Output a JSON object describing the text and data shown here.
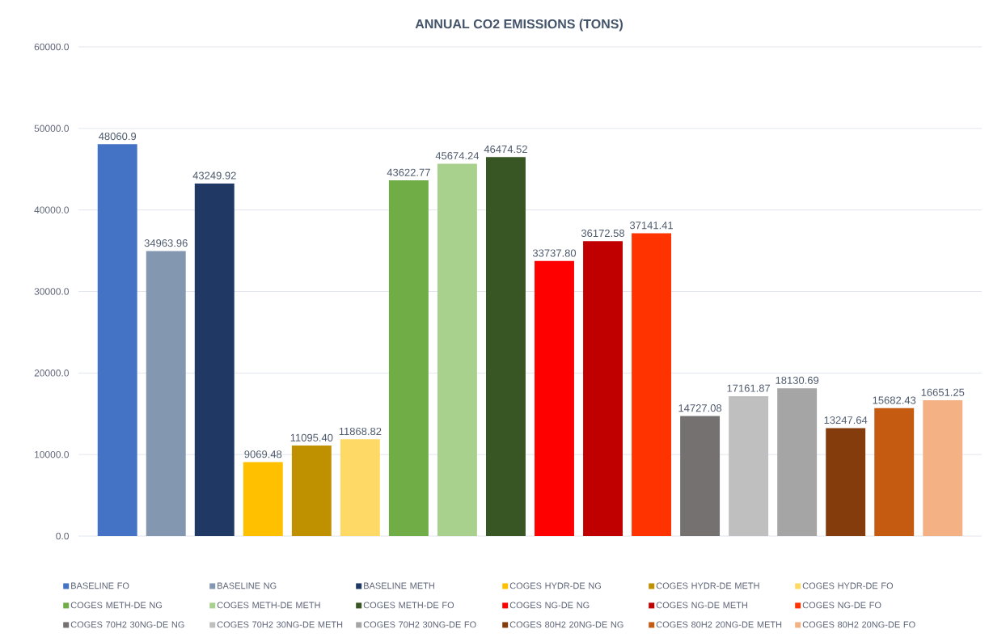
{
  "chart_data": {
    "type": "bar",
    "title": "ANNUAL CO2 EMISSIONS (TONS)",
    "categories": [
      null
    ],
    "series": [
      {
        "name": "BASELINE FO",
        "color": "#4472c4",
        "values": [
          48060.9
        ],
        "value_labels": [
          "48060.9"
        ]
      },
      {
        "name": "BASELINE NG",
        "color": "#8497b0",
        "values": [
          34963.96
        ],
        "value_labels": [
          "34963.96"
        ]
      },
      {
        "name": "BASELINE METH",
        "color": "#203864",
        "values": [
          43249.92
        ],
        "value_labels": [
          "43249.92"
        ]
      },
      {
        "name": "COGES HYDR-DE NG",
        "color": "#ffc000",
        "values": [
          9069.48
        ],
        "value_labels": [
          "9069.48"
        ]
      },
      {
        "name": "COGES HYDR-DE METH",
        "color": "#bf9000",
        "values": [
          11095.4
        ],
        "value_labels": [
          "11095.40"
        ]
      },
      {
        "name": "COGES HYDR-DE FO",
        "color": "#ffd966",
        "values": [
          11868.82
        ],
        "value_labels": [
          "11868.82"
        ]
      },
      {
        "name": "COGES METH-DE NG",
        "color": "#70ad47",
        "values": [
          43622.77
        ],
        "value_labels": [
          "43622.77"
        ]
      },
      {
        "name": "COGES METH-DE METH",
        "color": "#a9d18e",
        "values": [
          45674.24
        ],
        "value_labels": [
          "45674.24"
        ]
      },
      {
        "name": "COGES METH-DE FO",
        "color": "#375623",
        "values": [
          46474.52
        ],
        "value_labels": [
          "46474.52"
        ]
      },
      {
        "name": "COGES NG-DE NG",
        "color": "#ff0000",
        "values": [
          33737.8
        ],
        "value_labels": [
          "33737.80"
        ]
      },
      {
        "name": "COGES NG-DE METH",
        "color": "#c00000",
        "values": [
          36172.58
        ],
        "value_labels": [
          "36172.58"
        ]
      },
      {
        "name": "COGES NG-DE FO",
        "color": "#ff3300",
        "values": [
          37141.41
        ],
        "value_labels": [
          "37141.41"
        ]
      },
      {
        "name": "COGES 70H2 30NG-DE NG",
        "color": "#767171",
        "values": [
          14727.08
        ],
        "value_labels": [
          "14727.08"
        ]
      },
      {
        "name": "COGES 70H2 30NG-DE METH",
        "color": "#bfbfbf",
        "values": [
          17161.87
        ],
        "value_labels": [
          "17161.87"
        ]
      },
      {
        "name": "COGES 70H2 30NG-DE FO",
        "color": "#a5a5a5",
        "values": [
          18130.69
        ],
        "value_labels": [
          "18130.69"
        ]
      },
      {
        "name": "COGES 80H2 20NG-DE NG",
        "color": "#843c0c",
        "values": [
          13247.64
        ],
        "value_labels": [
          "13247.64"
        ]
      },
      {
        "name": "COGES 80H2 20NG-DE METH",
        "color": "#c55a11",
        "values": [
          15682.43
        ],
        "value_labels": [
          "15682.43"
        ]
      },
      {
        "name": "COGES 80H2 20NG-DE FO",
        "color": "#f4b183",
        "values": [
          16651.25
        ],
        "value_labels": [
          "16651.25"
        ]
      }
    ],
    "ylim": [
      0,
      60000
    ],
    "yticks": [
      {
        "value": 0,
        "label": "0.0"
      },
      {
        "value": 10000,
        "label": "10000.0"
      },
      {
        "value": 20000,
        "label": "20000.0"
      },
      {
        "value": 30000,
        "label": "30000.0"
      },
      {
        "value": 40000,
        "label": "40000.0"
      },
      {
        "value": 50000,
        "label": "50000.0"
      },
      {
        "value": 60000,
        "label": "60000.0"
      }
    ],
    "grid": "y",
    "legend": "bottom"
  }
}
